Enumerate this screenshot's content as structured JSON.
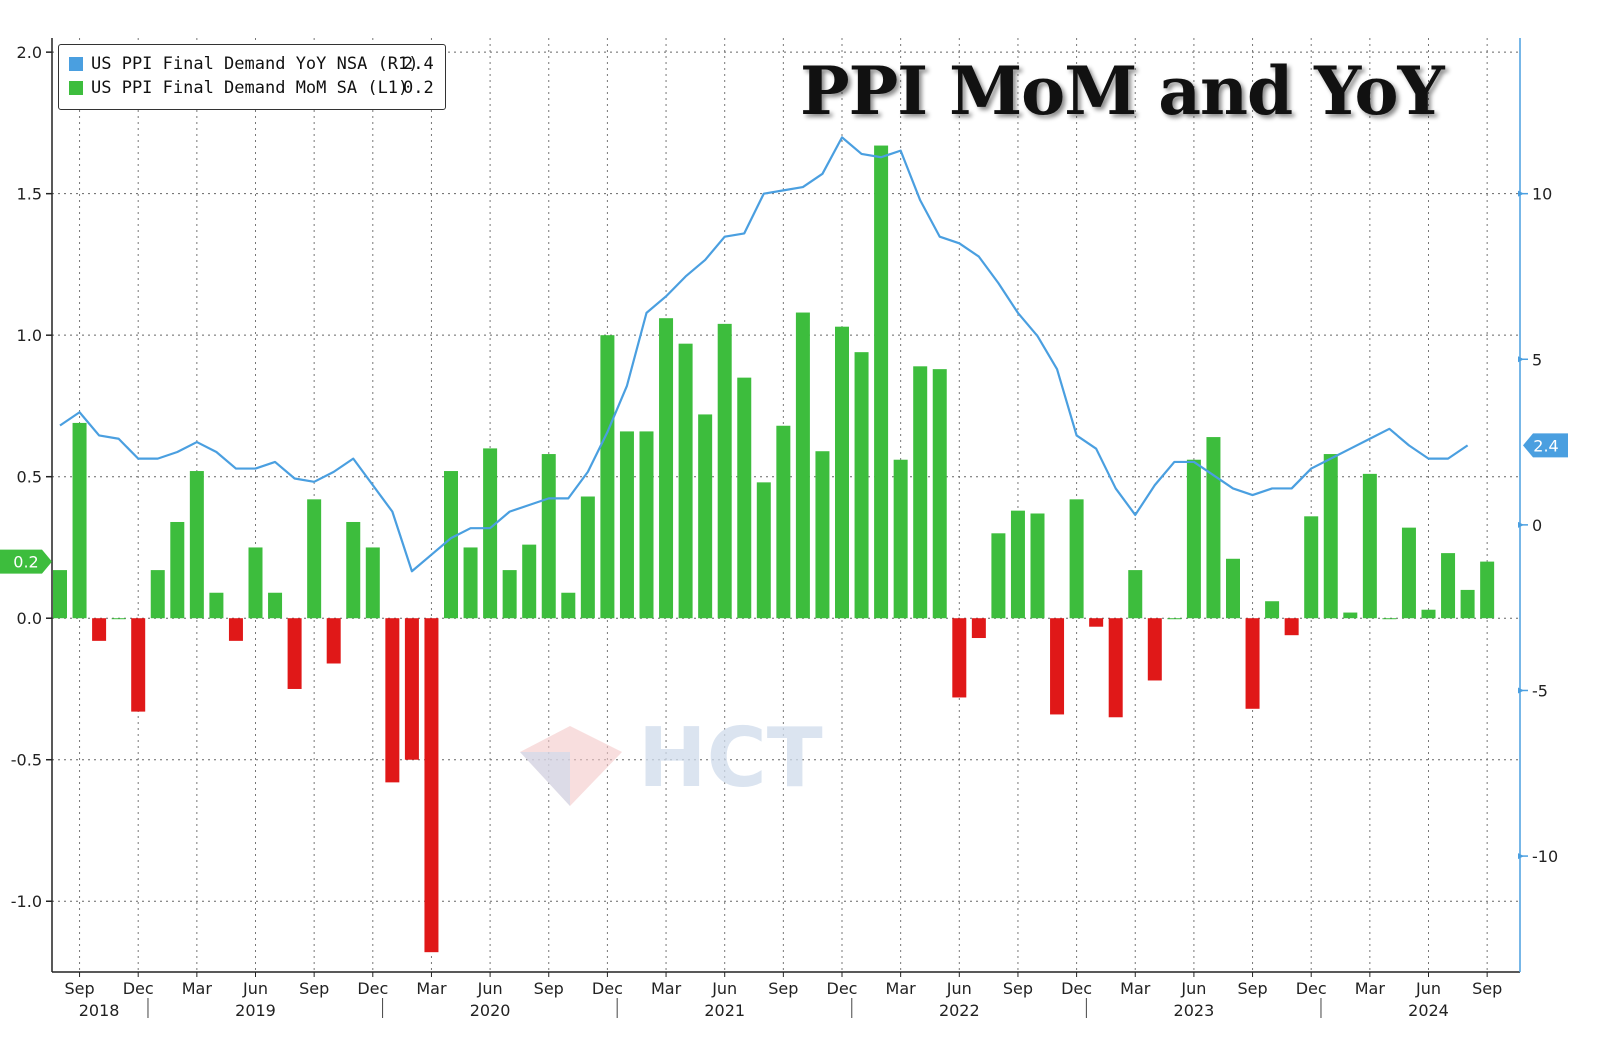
{
  "chart_data": {
    "type": "bar",
    "title": "PPI MoM and YoY",
    "series": [
      {
        "name": "US PPI Final Demand YoY NSA (R1)",
        "last_value_label": "2.4",
        "axis": "right",
        "render": "line",
        "color": "#4a9fe0",
        "values": [
          3.0,
          3.4,
          2.7,
          2.6,
          2.0,
          2.0,
          2.2,
          2.5,
          2.2,
          1.7,
          1.7,
          1.9,
          1.4,
          1.3,
          1.6,
          2.0,
          1.2,
          0.4,
          -1.4,
          -0.9,
          -0.4,
          -0.1,
          -0.1,
          0.4,
          0.6,
          0.8,
          0.8,
          1.6,
          2.8,
          4.2,
          6.4,
          6.9,
          7.5,
          8.0,
          8.7,
          8.8,
          10.0,
          10.1,
          10.2,
          10.6,
          11.7,
          11.2,
          11.1,
          11.3,
          9.8,
          8.7,
          8.5,
          8.1,
          7.3,
          6.4,
          5.7,
          4.7,
          2.7,
          2.3,
          1.1,
          0.3,
          1.2,
          1.9,
          1.9,
          1.5,
          1.1,
          0.9,
          1.1,
          1.1,
          1.7,
          2.0,
          2.3,
          2.6,
          2.9,
          2.4,
          2.0,
          2.0,
          2.4
        ]
      },
      {
        "name": "US PPI Final Demand MoM SA (L1)",
        "last_value_label": "0.2",
        "axis": "left",
        "render": "bar",
        "color": "#3dbd3d",
        "negative_color": "#e01818",
        "values": [
          0.17,
          0.69,
          -0.08,
          0.0,
          -0.33,
          0.17,
          0.34,
          0.52,
          0.09,
          -0.08,
          0.25,
          0.09,
          -0.25,
          0.42,
          -0.16,
          0.34,
          0.25,
          -0.58,
          -0.5,
          -1.18,
          0.52,
          0.25,
          0.6,
          0.17,
          0.26,
          0.58,
          0.09,
          0.43,
          1.0,
          0.66,
          0.66,
          1.06,
          0.97,
          0.72,
          1.04,
          0.85,
          0.48,
          0.68,
          1.08,
          0.59,
          1.03,
          0.94,
          1.67,
          0.56,
          0.89,
          0.88,
          -0.28,
          -0.07,
          0.3,
          0.38,
          0.37,
          -0.34,
          0.42,
          -0.03,
          -0.35,
          0.17,
          -0.22,
          0.0,
          0.56,
          0.64,
          0.21,
          -0.32,
          0.06,
          -0.06,
          0.36,
          0.58,
          0.02,
          0.51,
          0.0,
          0.32,
          0.03,
          0.23,
          0.1,
          0.2
        ]
      }
    ],
    "left_axis": {
      "ylim": [
        -1.25,
        2.05
      ],
      "ticks": [
        "2.0",
        "1.5",
        "1.0",
        "0.5",
        "0.0",
        "-0.5",
        "-1.0"
      ],
      "tick_values": [
        2.0,
        1.5,
        1.0,
        0.5,
        0.0,
        -0.5,
        -1.0
      ]
    },
    "right_axis": {
      "ylim": [
        -13.5,
        14.7
      ],
      "ticks": [
        "10",
        "5",
        "0",
        "-5",
        "-10"
      ],
      "tick_values": [
        10,
        5,
        0,
        -5,
        -10
      ]
    },
    "x_axis": {
      "start": "Aug 2018",
      "end": "Oct 2024",
      "tick_labels": [
        {
          "label": "Sep",
          "index": 1
        },
        {
          "label": "Dec",
          "index": 4
        },
        {
          "label": "Mar",
          "index": 7
        },
        {
          "label": "Jun",
          "index": 10
        },
        {
          "label": "Sep",
          "index": 13
        },
        {
          "label": "Dec",
          "index": 16
        },
        {
          "label": "Mar",
          "index": 19
        },
        {
          "label": "Jun",
          "index": 22
        },
        {
          "label": "Sep",
          "index": 25
        },
        {
          "label": "Dec",
          "index": 28
        },
        {
          "label": "Mar",
          "index": 31
        },
        {
          "label": "Jun",
          "index": 34
        },
        {
          "label": "Sep",
          "index": 37
        },
        {
          "label": "Dec",
          "index": 40
        },
        {
          "label": "Mar",
          "index": 43
        },
        {
          "label": "Jun",
          "index": 46
        },
        {
          "label": "Sep",
          "index": 49
        },
        {
          "label": "Dec",
          "index": 52
        },
        {
          "label": "Mar",
          "index": 55
        },
        {
          "label": "Jun",
          "index": 58
        },
        {
          "label": "Sep",
          "index": 61
        },
        {
          "label": "Dec",
          "index": 64
        },
        {
          "label": "Mar",
          "index": 67
        },
        {
          "label": "Jun",
          "index": 70
        },
        {
          "label": "Sep",
          "index": 73
        }
      ],
      "year_labels": [
        {
          "label": "2018",
          "index": 2
        },
        {
          "label": "2019",
          "index": 10
        },
        {
          "label": "2020",
          "index": 22
        },
        {
          "label": "2021",
          "index": 34
        },
        {
          "label": "2022",
          "index": 46
        },
        {
          "label": "2023",
          "index": 58
        },
        {
          "label": "2024",
          "index": 70
        }
      ]
    },
    "grid": true,
    "legend": "top-left",
    "watermark": "HCT"
  },
  "legend": {
    "items": [
      {
        "label": "US PPI Final Demand YoY NSA (R1)",
        "value": "2.4",
        "color": "#4a9fe0"
      },
      {
        "label": "US PPI Final Demand MoM SA (L1)",
        "value": "0.2",
        "color": "#3dbd3d"
      }
    ]
  },
  "title": "PPI MoM and YoY",
  "tags": {
    "left_last": "0.2",
    "right_last": "2.4"
  }
}
